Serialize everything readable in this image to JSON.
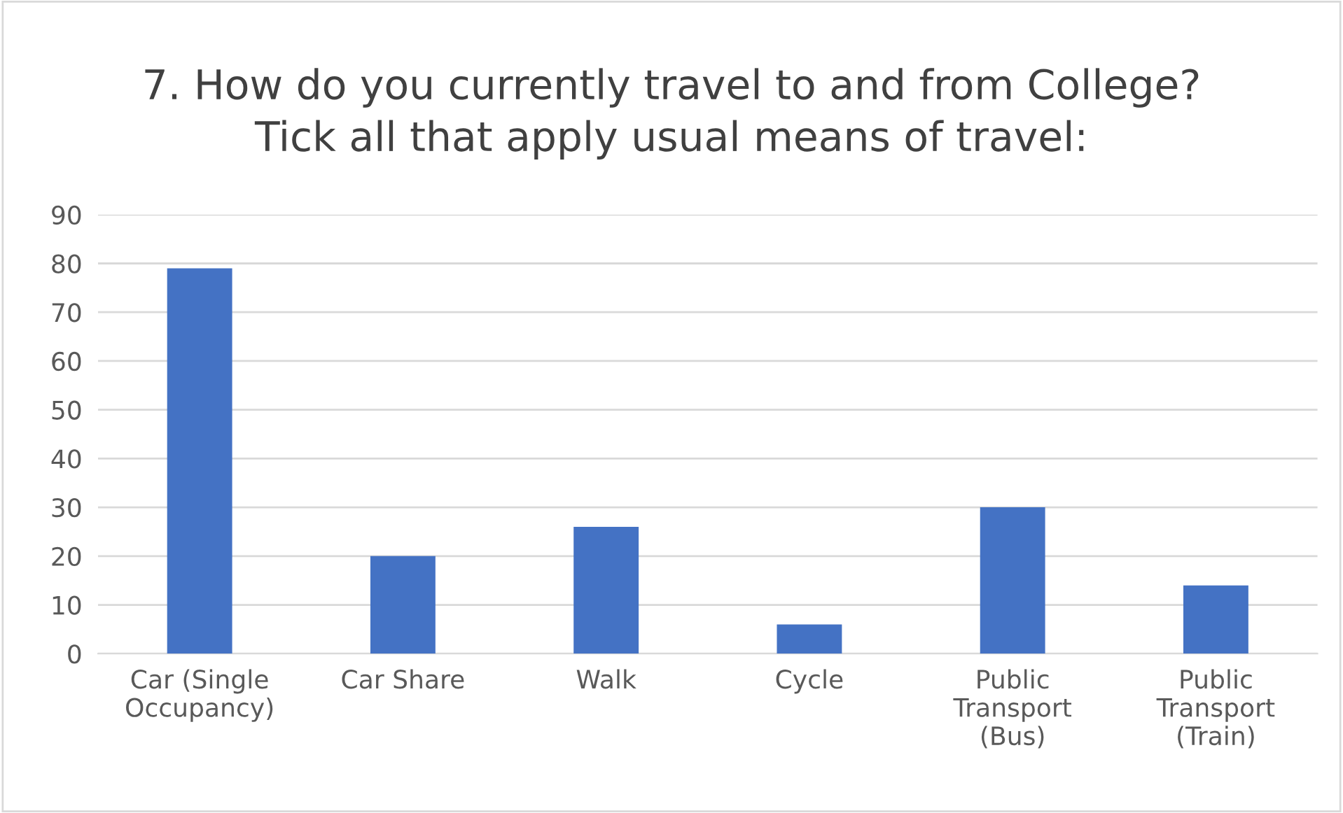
{
  "chart_data": {
    "type": "bar",
    "title": "7. How do you currently travel to and from College? Tick all that apply usual means of travel:",
    "categories": [
      "Car (Single Occupancy)",
      "Car Share",
      "Walk",
      "Cycle",
      "Public Transport (Bus)",
      "Public Transport (Train)"
    ],
    "values": [
      79,
      20,
      26,
      6,
      30,
      14
    ],
    "color": "#4472c4",
    "ylim": [
      0,
      90
    ],
    "yticks": [
      0,
      10,
      20,
      30,
      40,
      50,
      60,
      70,
      80,
      90
    ],
    "grid": "y",
    "legend": false
  }
}
